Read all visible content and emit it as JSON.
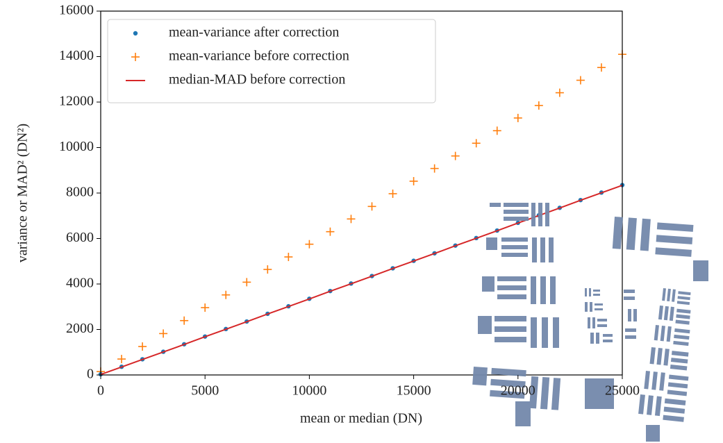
{
  "chart_data": {
    "type": "scatter",
    "xlabel": "mean or median (DN)",
    "ylabel": "variance or MAD² (DN²)",
    "x": [
      0,
      1000,
      2000,
      3000,
      4000,
      5000,
      6000,
      7000,
      8000,
      9000,
      10000,
      11000,
      12000,
      13000,
      14000,
      15000,
      16000,
      17000,
      18000,
      19000,
      20000,
      21000,
      22000,
      23000,
      24000,
      25000
    ],
    "series": [
      {
        "name": "mean-variance after correction",
        "color": "#1f77b4",
        "marker": "dot",
        "values": [
          30,
          360,
          690,
          1020,
          1350,
          1690,
          2020,
          2350,
          2690,
          3020,
          3350,
          3690,
          4020,
          4350,
          4690,
          5020,
          5350,
          5690,
          6020,
          6350,
          6690,
          7020,
          7350,
          7690,
          8020,
          8350
        ]
      },
      {
        "name": "mean-variance before correction",
        "color": "#ff7f0e",
        "marker": "plus",
        "values": [
          150,
          700,
          1250,
          1820,
          2390,
          2960,
          3520,
          4080,
          4640,
          5190,
          5750,
          6300,
          6860,
          7410,
          7970,
          8520,
          9080,
          9630,
          10190,
          10740,
          11300,
          11850,
          12410,
          12960,
          13520,
          14100
        ]
      },
      {
        "name": "median-MAD before correction",
        "color": "#d62728",
        "marker": "line",
        "values": [
          20,
          350,
          680,
          1010,
          1340,
          1680,
          2010,
          2340,
          2680,
          3010,
          3340,
          3680,
          4010,
          4340,
          4680,
          5010,
          5340,
          5680,
          6010,
          6340,
          6680,
          7010,
          7340,
          7680,
          8010,
          8340
        ]
      }
    ],
    "xlim": [
      0,
      25000
    ],
    "xticks": [
      0,
      5000,
      10000,
      15000,
      20000,
      25000
    ],
    "ylim": [
      0,
      16000
    ],
    "yticks": [
      0,
      2000,
      4000,
      6000,
      8000,
      10000,
      12000,
      14000,
      16000
    ],
    "legend": "upper left"
  }
}
